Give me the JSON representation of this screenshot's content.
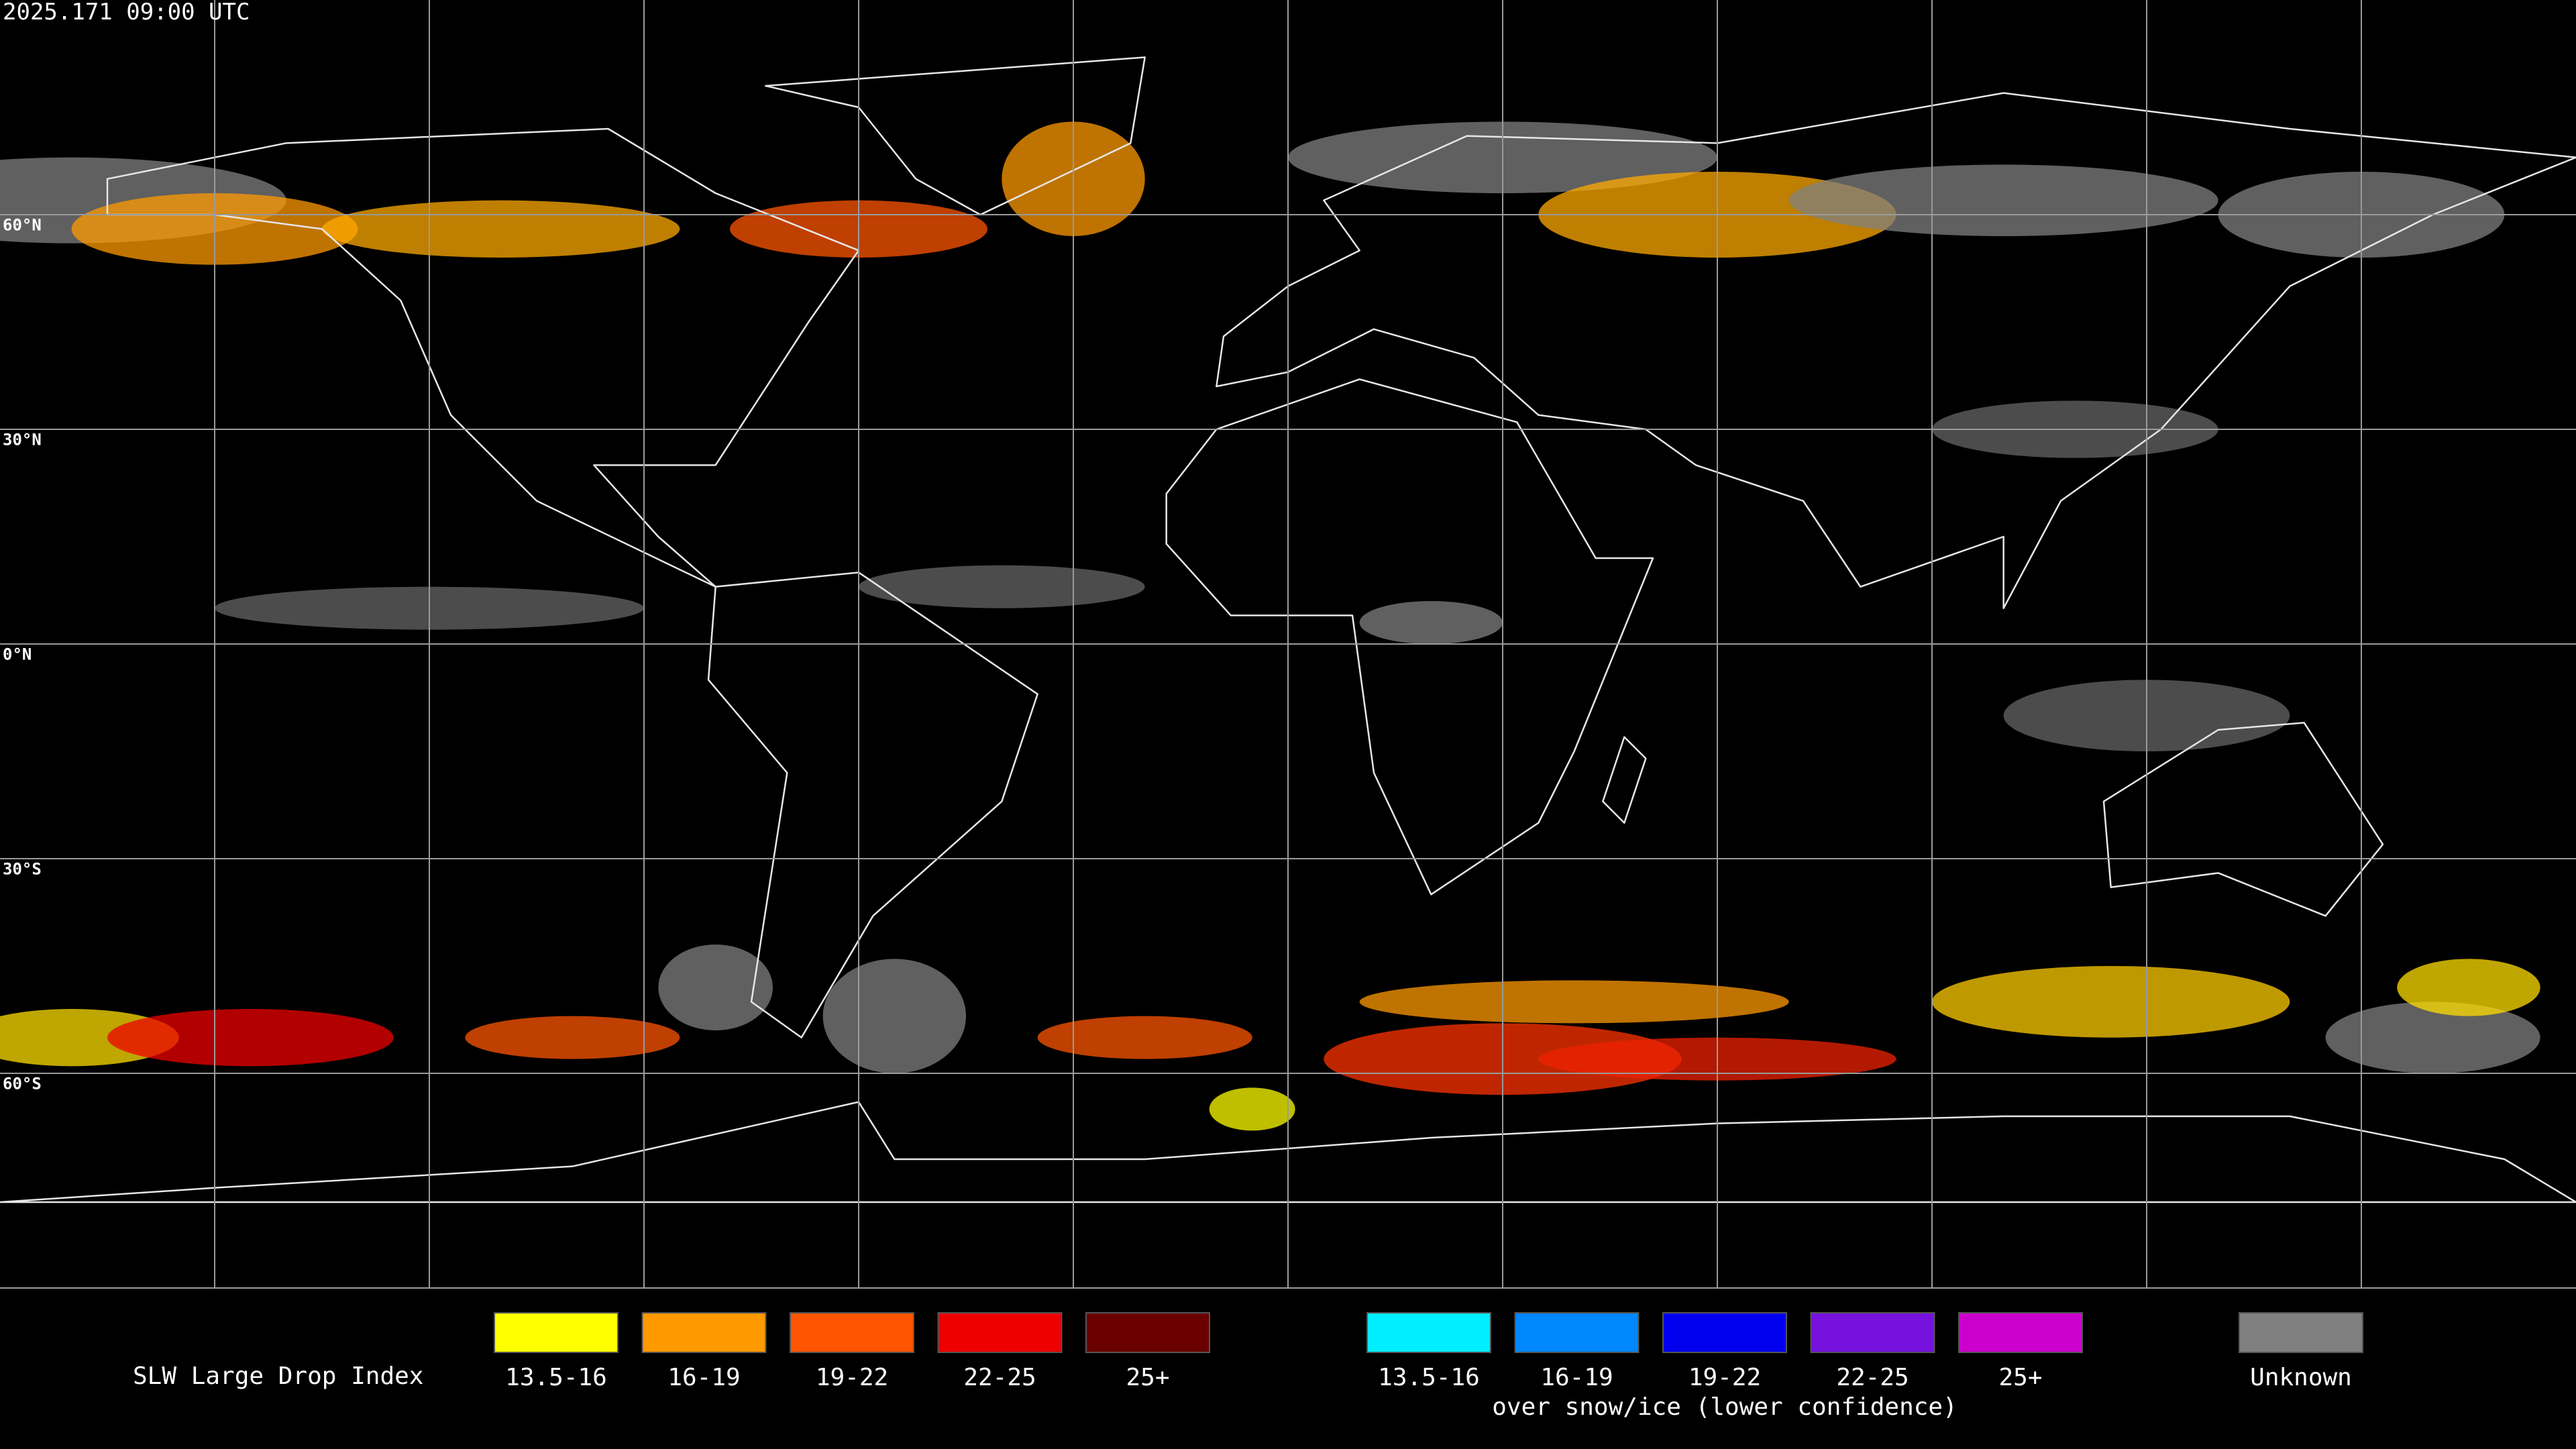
{
  "header": {
    "timestamp": "2025.171 09:00 UTC"
  },
  "map": {
    "lat_labels": [
      "60°N",
      "30°N",
      "0°N",
      "30°S",
      "60°S"
    ]
  },
  "legend": {
    "title": "SLW Large Drop Index",
    "liquid": [
      {
        "label": "13.5-16",
        "color": "#ffff00"
      },
      {
        "label": "16-19",
        "color": "#ff9900"
      },
      {
        "label": "19-22",
        "color": "#ff5500"
      },
      {
        "label": "22-25",
        "color": "#ee0000"
      },
      {
        "label": "25+",
        "color": "#6a0000"
      }
    ],
    "snow_ice": [
      {
        "label": "13.5-16",
        "color": "#00eeff"
      },
      {
        "label": "16-19",
        "color": "#0088ff"
      },
      {
        "label": "19-22",
        "color": "#0000ee"
      },
      {
        "label": "22-25",
        "color": "#7711dd"
      },
      {
        "label": "25+",
        "color": "#cc00cc"
      }
    ],
    "snow_ice_note": "over snow/ice (lower confidence)",
    "unknown": {
      "label": "Unknown",
      "color": "#808080"
    }
  }
}
